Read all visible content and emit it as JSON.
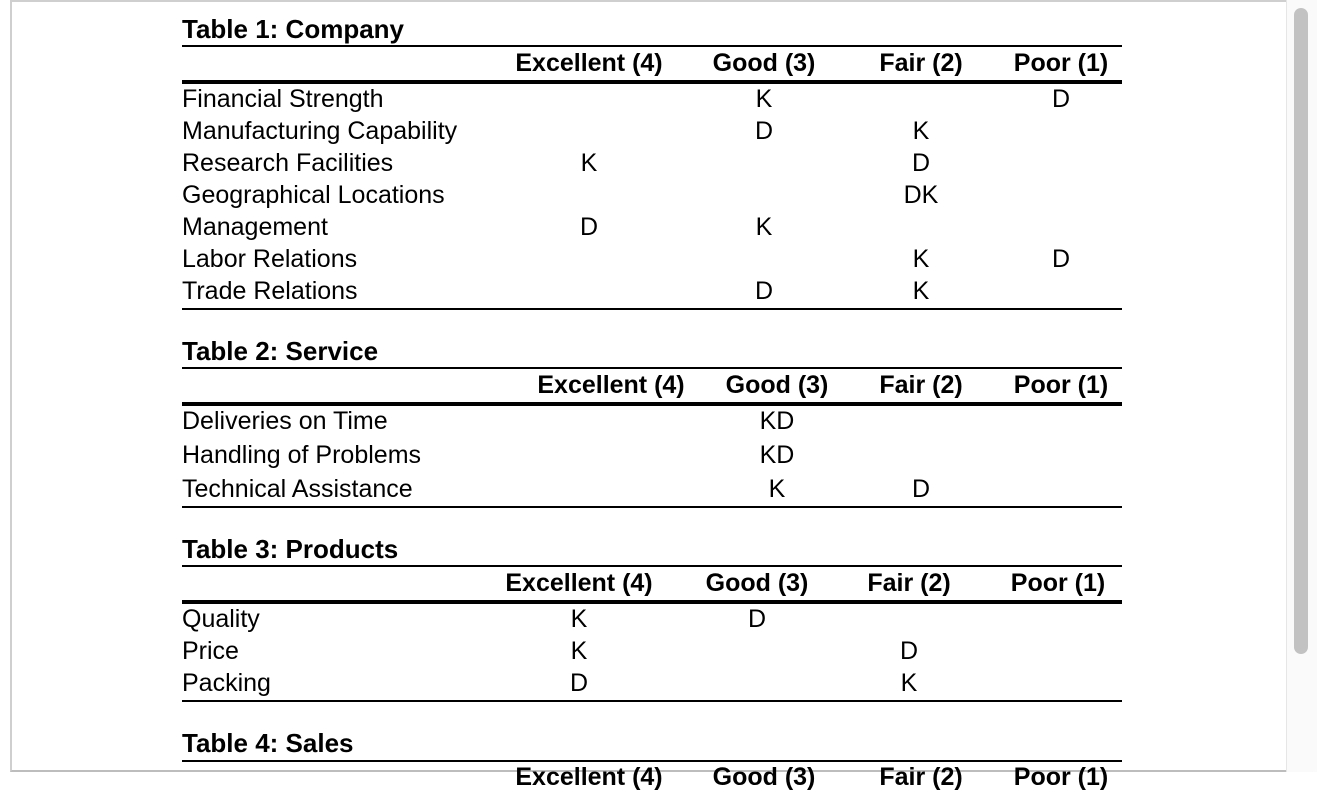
{
  "tables": [
    {
      "title": "Table 1: Company",
      "headers": [
        "Excellent (4)",
        "Good (3)",
        "Fair (2)",
        "Poor (1)"
      ],
      "rows": [
        {
          "label": "Financial Strength",
          "cells": [
            "",
            "K",
            "",
            "D"
          ]
        },
        {
          "label": "Manufacturing Capability",
          "cells": [
            "",
            "D",
            "K",
            ""
          ]
        },
        {
          "label": "Research Facilities",
          "cells": [
            "K",
            "",
            "D",
            ""
          ]
        },
        {
          "label": "Geographical Locations",
          "cells": [
            "",
            "",
            "DK",
            ""
          ]
        },
        {
          "label": "Management",
          "cells": [
            "D",
            "K",
            "",
            ""
          ]
        },
        {
          "label": "Labor Relations",
          "cells": [
            "",
            "",
            "K",
            "D"
          ]
        },
        {
          "label": "Trade Relations",
          "cells": [
            "",
            "D",
            "K",
            ""
          ]
        }
      ]
    },
    {
      "title": "Table 2: Service",
      "headers": [
        "Excellent (4)",
        "Good (3)",
        "Fair (2)",
        "Poor (1)"
      ],
      "rows": [
        {
          "label": "Deliveries on Time",
          "cells": [
            "",
            "KD",
            "",
            ""
          ]
        },
        {
          "label": "Handling of Problems",
          "cells": [
            "",
            "KD",
            "",
            ""
          ]
        },
        {
          "label": "Technical Assistance",
          "cells": [
            "",
            "K",
            "D",
            ""
          ]
        }
      ]
    },
    {
      "title": "Table 3: Products",
      "headers": [
        "Excellent (4)",
        "Good (3)",
        "Fair (2)",
        "Poor (1)"
      ],
      "rows": [
        {
          "label": "Quality",
          "cells": [
            "K",
            "D",
            "",
            ""
          ]
        },
        {
          "label": "Price",
          "cells": [
            "K",
            "",
            "D",
            ""
          ]
        },
        {
          "label": "Packing",
          "cells": [
            "D",
            "",
            "K",
            ""
          ]
        }
      ]
    },
    {
      "title": "Table 4: Sales",
      "headers": [
        "Excellent (4)",
        "Good (3)",
        "Fair (2)",
        "Poor (1)"
      ],
      "rows": []
    }
  ]
}
